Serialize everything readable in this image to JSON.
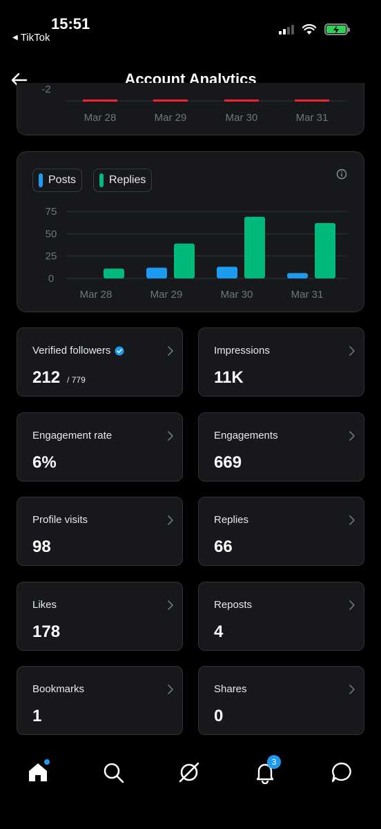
{
  "status_bar": {
    "time": "15:51",
    "back_app": "TikTok"
  },
  "header": {
    "title": "Account Analytics"
  },
  "top_chart": {
    "y_tick_partial": "-2",
    "x_labels": [
      "Mar 28",
      "Mar 29",
      "Mar 30",
      "Mar 31"
    ],
    "line_color": "#f4212e"
  },
  "chart_data": {
    "type": "bar",
    "categories": [
      "Mar 28",
      "Mar 29",
      "Mar 30",
      "Mar 31"
    ],
    "series": [
      {
        "name": "Posts",
        "color": "#1d9bf0",
        "values": [
          0,
          12,
          13,
          6
        ]
      },
      {
        "name": "Replies",
        "color": "#00ba7c",
        "values": [
          11,
          39,
          69,
          62
        ]
      }
    ],
    "yticks": [
      "75",
      "50",
      "25",
      "0"
    ],
    "ylim": [
      0,
      75
    ],
    "grid": true,
    "legend": "top-left"
  },
  "stats": [
    {
      "label": "Verified followers",
      "value": "212",
      "sub": "/ 779",
      "verified": true
    },
    {
      "label": "Impressions",
      "value": "11K"
    },
    {
      "label": "Engagement rate",
      "value": "6%"
    },
    {
      "label": "Engagements",
      "value": "669"
    },
    {
      "label": "Profile visits",
      "value": "98"
    },
    {
      "label": "Replies",
      "value": "66"
    },
    {
      "label": "Likes",
      "value": "178"
    },
    {
      "label": "Reposts",
      "value": "4"
    },
    {
      "label": "Bookmarks",
      "value": "1"
    },
    {
      "label": "Shares",
      "value": "0"
    }
  ],
  "nav": {
    "notifications_badge": "3"
  },
  "colors": {
    "accent": "#1d9bf0",
    "green": "#00ba7c",
    "card_bg": "#16181c",
    "border": "#2f3336"
  }
}
